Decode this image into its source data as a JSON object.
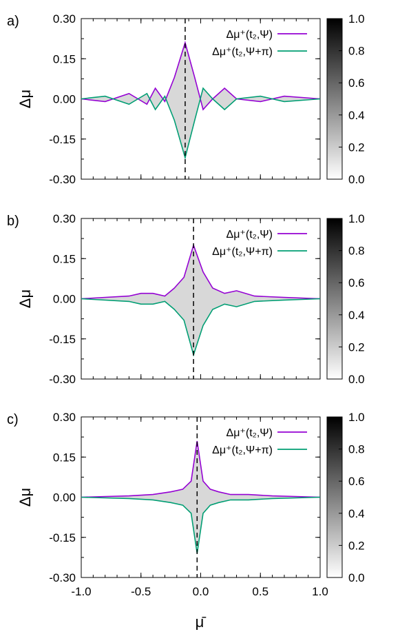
{
  "figure": {
    "xlabel": "μ̄",
    "ylabel": "Δμ",
    "x_ticks": [
      "-1.0",
      "-0.5",
      "0.0",
      "0.5",
      "1.0"
    ],
    "y_ticks": [
      "0.30",
      "0.15",
      "0.00",
      "-0.15",
      "-0.30"
    ],
    "colorbar_ticks": [
      "1.0",
      "0.8",
      "0.6",
      "0.4",
      "0.2",
      "0.0"
    ],
    "colors": {
      "purple": "#9400d3",
      "green": "#009e73",
      "colormap": "white-to-black"
    }
  },
  "chart_data": [
    {
      "type": "line",
      "panel_label": "a)",
      "xlim": [
        -1.0,
        1.0
      ],
      "ylim": [
        -0.3,
        0.3
      ],
      "vline_x": -0.13,
      "series": [
        {
          "name": "Δμ⁺(t₂,Ψ)",
          "color": "#9400d3",
          "x": [
            -1.0,
            -0.8,
            -0.6,
            -0.45,
            -0.38,
            -0.3,
            -0.22,
            -0.13,
            -0.05,
            0.02,
            0.1,
            0.2,
            0.3,
            0.5,
            0.7,
            1.0
          ],
          "y": [
            0.0,
            -0.01,
            0.02,
            -0.02,
            0.04,
            -0.01,
            0.08,
            0.21,
            0.08,
            -0.04,
            0.0,
            0.04,
            0.0,
            -0.01,
            0.01,
            0.0
          ]
        },
        {
          "name": "Δμ⁺(t₂,Ψ+π)",
          "color": "#009e73",
          "x": [
            -1.0,
            -0.8,
            -0.6,
            -0.45,
            -0.38,
            -0.3,
            -0.22,
            -0.13,
            -0.05,
            0.02,
            0.1,
            0.2,
            0.3,
            0.5,
            0.7,
            1.0
          ],
          "y": [
            0.0,
            0.01,
            -0.02,
            0.02,
            -0.04,
            0.01,
            -0.08,
            -0.22,
            -0.08,
            0.04,
            0.0,
            -0.04,
            0.0,
            0.01,
            -0.01,
            0.0
          ]
        }
      ],
      "colorbar": {
        "min": 0.0,
        "max": 1.0
      }
    },
    {
      "type": "line",
      "panel_label": "b)",
      "xlim": [
        -1.0,
        1.0
      ],
      "ylim": [
        -0.3,
        0.3
      ],
      "vline_x": -0.06,
      "series": [
        {
          "name": "Δμ⁺(t₂,Ψ)",
          "color": "#9400d3",
          "x": [
            -1.0,
            -0.6,
            -0.5,
            -0.4,
            -0.3,
            -0.22,
            -0.14,
            -0.06,
            0.02,
            0.1,
            0.2,
            0.3,
            0.45,
            0.7,
            1.0
          ],
          "y": [
            0.0,
            0.01,
            0.02,
            0.02,
            0.01,
            0.04,
            0.08,
            0.2,
            0.1,
            0.04,
            0.02,
            0.03,
            0.01,
            0.005,
            0.0
          ]
        },
        {
          "name": "Δμ⁺(t₂,Ψ+π)",
          "color": "#009e73",
          "x": [
            -1.0,
            -0.6,
            -0.5,
            -0.4,
            -0.3,
            -0.22,
            -0.14,
            -0.06,
            0.02,
            0.1,
            0.2,
            0.3,
            0.45,
            0.7,
            1.0
          ],
          "y": [
            0.0,
            -0.01,
            -0.02,
            -0.02,
            -0.01,
            -0.04,
            -0.08,
            -0.21,
            -0.1,
            -0.04,
            -0.02,
            -0.03,
            -0.01,
            -0.005,
            0.0
          ]
        }
      ],
      "colorbar": {
        "min": 0.0,
        "max": 1.0
      }
    },
    {
      "type": "line",
      "panel_label": "c)",
      "xlim": [
        -1.0,
        1.0
      ],
      "ylim": [
        -0.3,
        0.3
      ],
      "vline_x": -0.03,
      "series": [
        {
          "name": "Δμ⁺(t₂,Ψ)",
          "color": "#9400d3",
          "x": [
            -1.0,
            -0.6,
            -0.4,
            -0.25,
            -0.15,
            -0.08,
            -0.03,
            0.02,
            0.08,
            0.15,
            0.25,
            0.4,
            0.6,
            1.0
          ],
          "y": [
            0.0,
            0.005,
            0.01,
            0.02,
            0.03,
            0.06,
            0.21,
            0.06,
            0.03,
            0.02,
            0.01,
            0.01,
            0.005,
            0.0
          ]
        },
        {
          "name": "Δμ⁺(t₂,Ψ+π)",
          "color": "#009e73",
          "x": [
            -1.0,
            -0.6,
            -0.4,
            -0.25,
            -0.15,
            -0.08,
            -0.03,
            0.02,
            0.08,
            0.15,
            0.25,
            0.4,
            0.6,
            1.0
          ],
          "y": [
            0.0,
            -0.005,
            -0.01,
            -0.02,
            -0.03,
            -0.06,
            -0.21,
            -0.06,
            -0.03,
            -0.02,
            -0.01,
            -0.01,
            -0.005,
            0.0
          ]
        }
      ],
      "colorbar": {
        "min": 0.0,
        "max": 1.0
      }
    }
  ]
}
